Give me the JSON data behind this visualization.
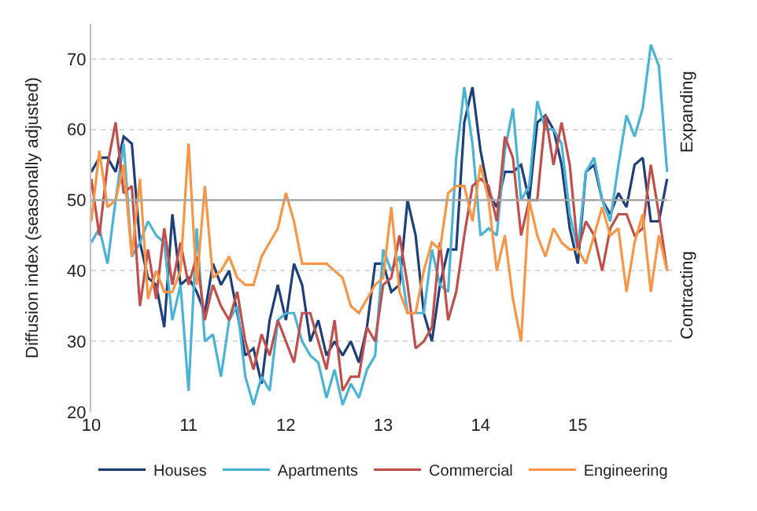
{
  "chart_data": {
    "type": "line",
    "ylabel": "Diffusion index (seasonally adjusted)",
    "annotations": [
      "Expanding",
      "Contracting"
    ],
    "x": [
      10.0,
      10.083,
      10.167,
      10.25,
      10.333,
      10.417,
      10.5,
      10.583,
      10.667,
      10.75,
      10.833,
      10.917,
      11.0,
      11.083,
      11.167,
      11.25,
      11.333,
      11.417,
      11.5,
      11.583,
      11.667,
      11.75,
      11.833,
      11.917,
      12.0,
      12.083,
      12.167,
      12.25,
      12.333,
      12.417,
      12.5,
      12.583,
      12.667,
      12.75,
      12.833,
      12.917,
      13.0,
      13.083,
      13.167,
      13.25,
      13.333,
      13.417,
      13.5,
      13.583,
      13.667,
      13.75,
      13.833,
      13.917,
      14.0,
      14.083,
      14.167,
      14.25,
      14.333,
      14.417,
      14.5,
      14.583,
      14.667,
      14.75,
      14.833,
      14.917,
      15.0,
      15.083,
      15.167,
      15.25,
      15.333,
      15.417,
      15.5,
      15.583,
      15.667,
      15.75,
      15.833,
      15.917
    ],
    "series": [
      {
        "name": "Houses",
        "color": "#1f3f7a",
        "values": [
          54,
          56,
          56,
          54,
          59,
          58,
          44,
          39,
          38,
          32,
          48,
          38,
          39,
          37,
          34,
          41,
          38,
          40,
          34,
          28,
          29,
          24,
          33,
          38,
          33,
          41,
          38,
          30,
          33,
          28,
          30,
          28,
          30,
          27,
          32,
          41,
          41,
          37,
          38,
          50,
          45,
          34,
          30,
          38,
          43,
          43,
          61,
          66,
          57,
          51,
          49,
          54,
          54,
          55,
          50,
          61,
          62,
          60,
          55,
          46,
          41,
          54,
          55,
          50,
          48,
          51,
          49,
          55,
          56,
          47,
          47,
          53
        ]
      },
      {
        "name": "Apartments",
        "color": "#4bb3d3",
        "values": [
          44,
          46,
          41,
          50,
          58,
          42,
          44,
          47,
          45,
          44,
          33,
          38,
          23,
          46,
          30,
          31,
          25,
          33,
          35,
          25,
          21,
          25,
          23,
          33,
          34,
          34,
          30,
          28,
          27,
          22,
          26,
          21,
          24,
          22,
          26,
          28,
          43,
          40,
          42,
          34,
          34,
          34,
          43,
          38,
          37,
          56,
          66,
          58,
          45,
          46,
          45,
          57,
          63,
          50,
          52,
          64,
          60,
          60,
          58,
          48,
          43,
          54,
          56,
          50,
          47,
          55,
          62,
          59,
          63,
          72,
          69,
          54
        ]
      },
      {
        "name": "Commercial",
        "color": "#c0504d",
        "values": [
          53,
          45,
          55,
          61,
          51,
          52,
          35,
          43,
          36,
          46,
          38,
          44,
          38,
          42,
          33,
          38,
          35,
          33,
          37,
          30,
          26,
          31,
          28,
          33,
          30,
          27,
          34,
          34,
          30,
          26,
          33,
          23,
          25,
          25,
          32,
          30,
          38,
          39,
          45,
          38,
          29,
          30,
          32,
          44,
          33,
          37,
          45,
          52,
          53,
          52,
          47,
          59,
          56,
          45,
          50,
          50,
          62,
          55,
          61,
          55,
          43,
          47,
          45,
          40,
          46,
          48,
          48,
          45,
          46,
          55,
          48,
          40
        ]
      },
      {
        "name": "Engineering",
        "color": "#f79646",
        "values": [
          47,
          57,
          49,
          50,
          55,
          42,
          53,
          36,
          40,
          37,
          37,
          40,
          58,
          38,
          52,
          39,
          40,
          42,
          39,
          38,
          38,
          42,
          44,
          46,
          51,
          47,
          41,
          41,
          41,
          41,
          40,
          39,
          35,
          34,
          36,
          38,
          39,
          49,
          37,
          34,
          34,
          40,
          44,
          43,
          51,
          52,
          52,
          47,
          55,
          50,
          40,
          45,
          36,
          30,
          50,
          45,
          42,
          46,
          44,
          43,
          43,
          41,
          45,
          49,
          45,
          46,
          37,
          44,
          48,
          37,
          45,
          40
        ]
      }
    ],
    "xlim": [
      10,
      16
    ],
    "xticks": [
      10,
      11,
      12,
      13,
      14,
      15
    ],
    "ylim": [
      20,
      75
    ],
    "yticks": [
      20,
      30,
      40,
      50,
      60,
      70
    ],
    "ref_lines": [
      {
        "axis": "y",
        "value": 50,
        "color": "#a6a6a6"
      }
    ],
    "grid": "y",
    "legend": "bottom",
    "marker": "none",
    "line_style": "solid"
  }
}
